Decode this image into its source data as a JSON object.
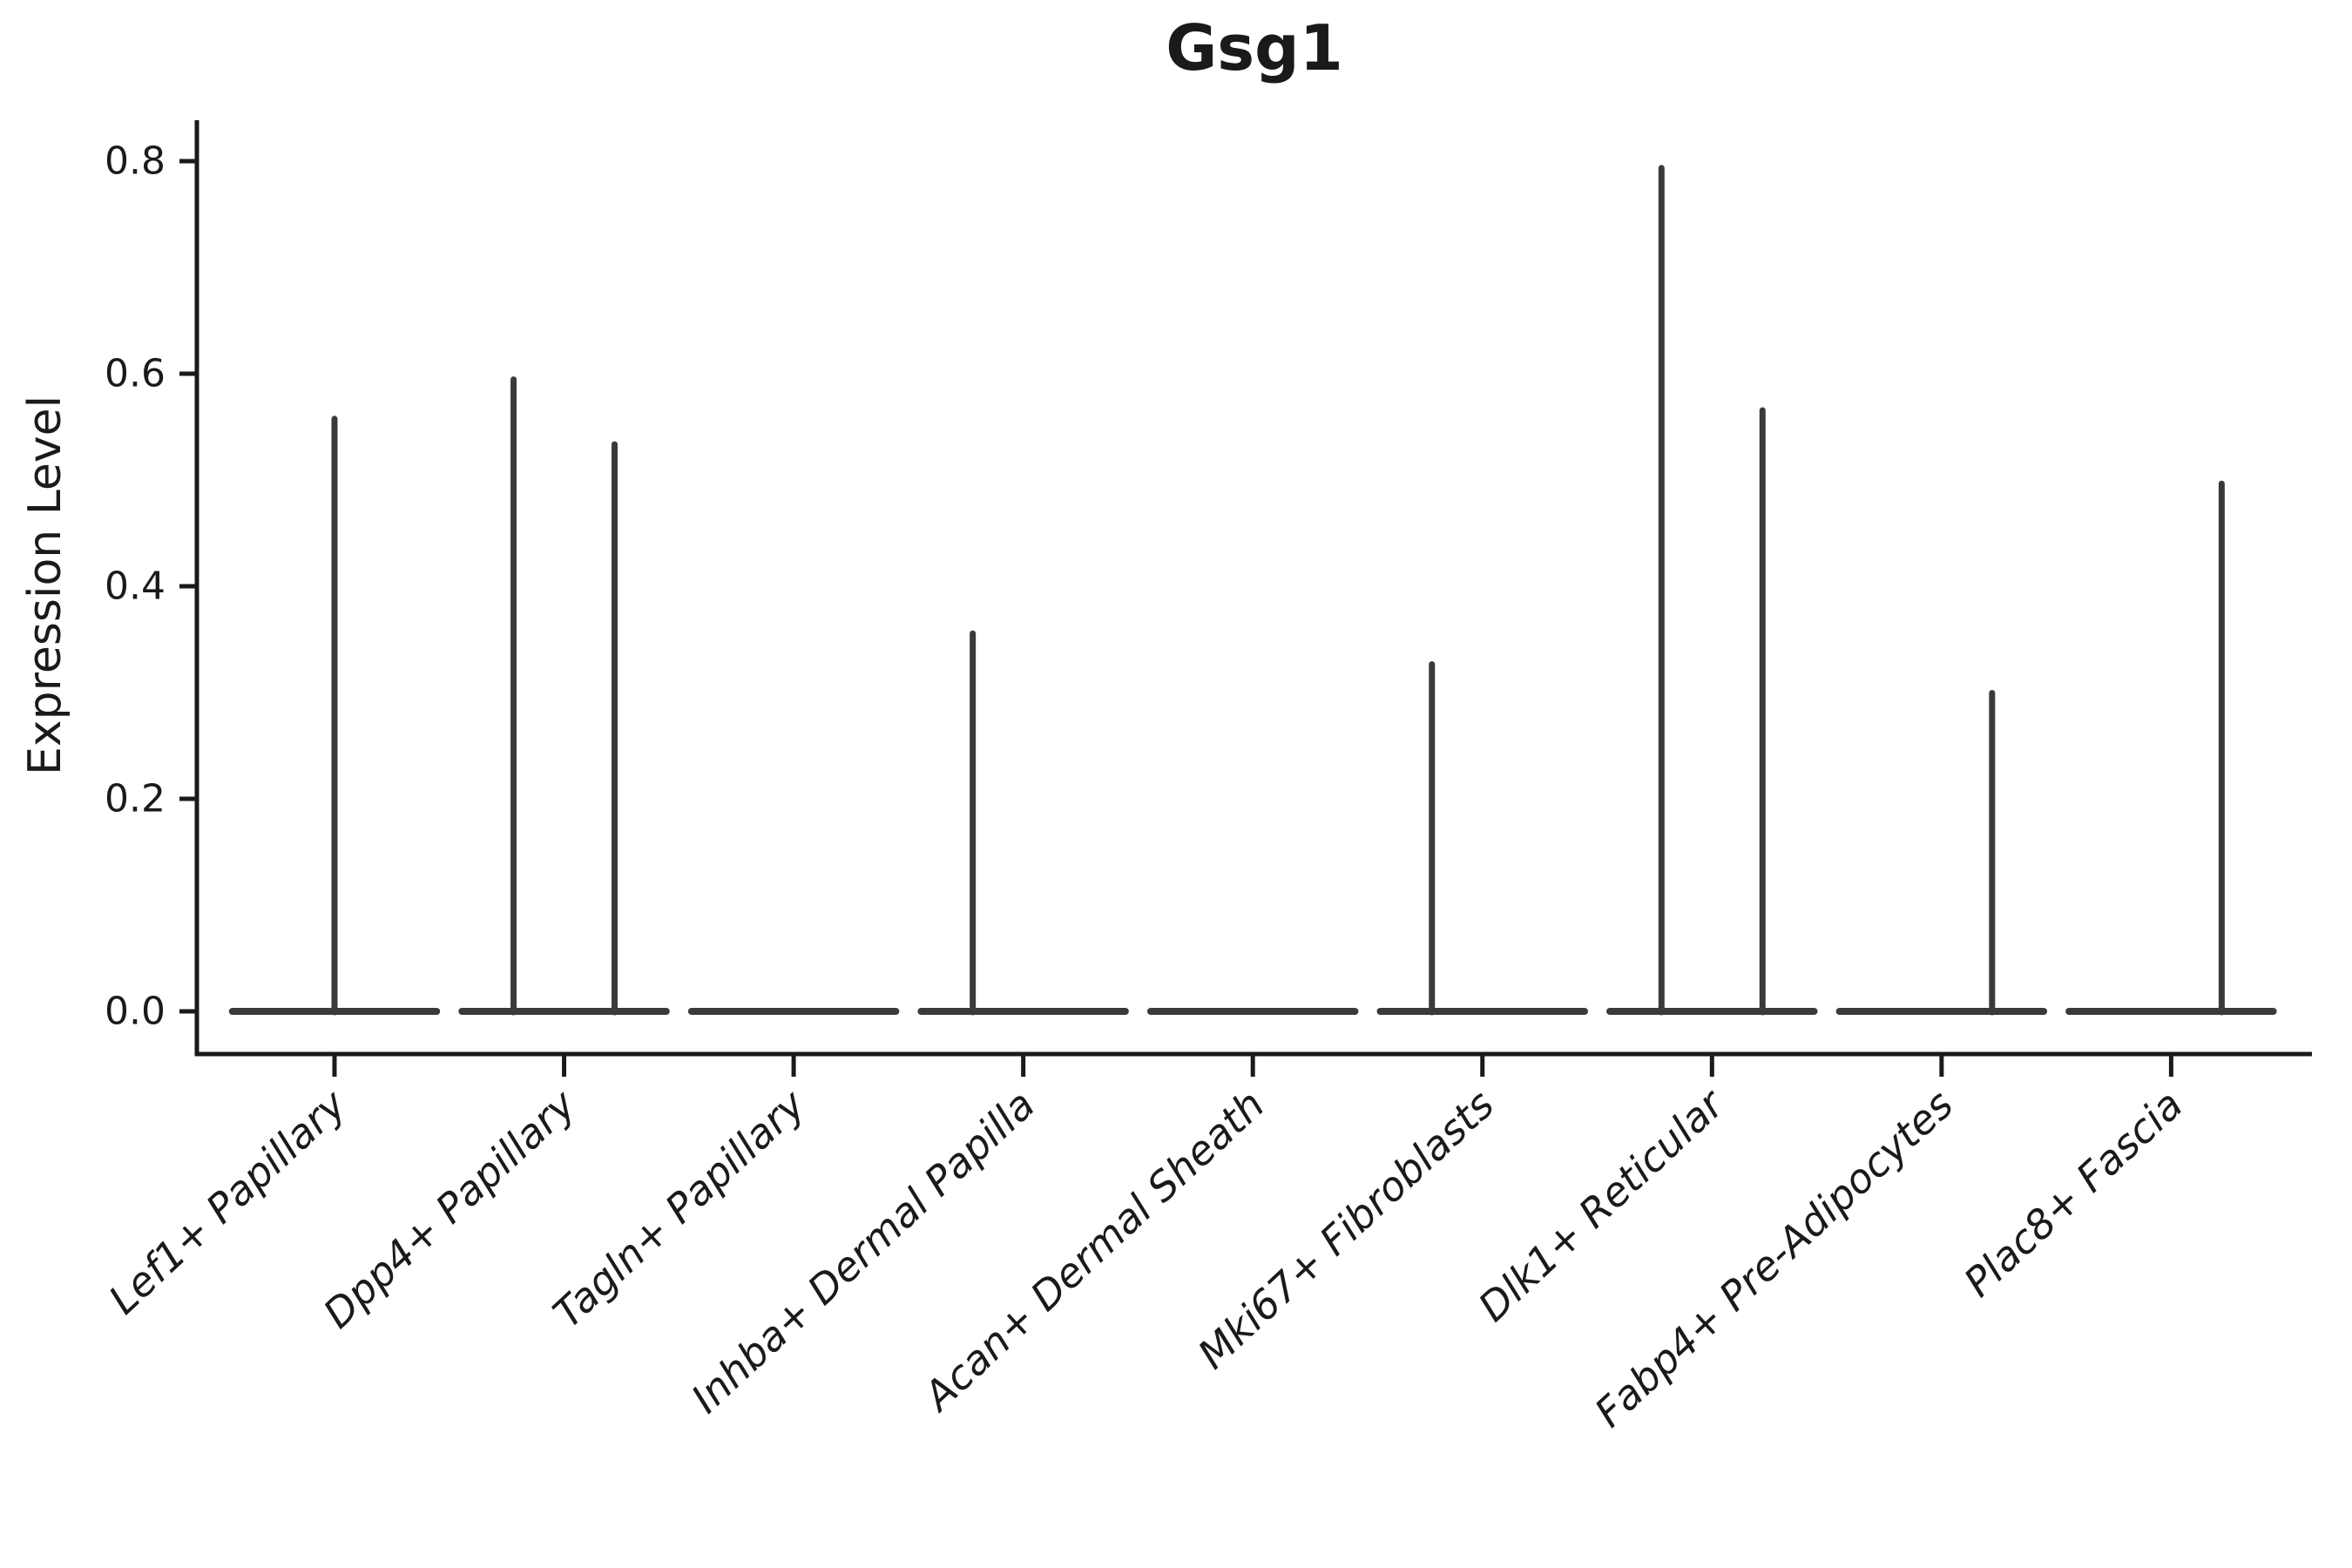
{
  "chart_data": {
    "type": "violin",
    "title": "Gsg1",
    "ylabel": "Expression Level",
    "xlabel": "",
    "ylim": [
      0,
      0.84
    ],
    "yticks": [
      {
        "label": "0.0",
        "value": 0.0
      },
      {
        "label": "0.2",
        "value": 0.2
      },
      {
        "label": "0.4",
        "value": 0.4
      },
      {
        "label": "0.6",
        "value": 0.6
      },
      {
        "label": "0.8",
        "value": 0.8
      }
    ],
    "grid": false,
    "legend": null,
    "x_label_rotation_deg": 43,
    "base_halfwidth": 0.46,
    "categories": [
      "Lef1+ Papillary",
      "Dpp4+ Papillary",
      "Tagln+ Papillary",
      "Inhba+ Dermal Papilla",
      "Acan+ Dermal Sheath",
      "Mki67+ Fibroblasts",
      "Dlk1+ Reticular",
      "Fabp4+ Pre-Adipocytes",
      "Plac8+ Fascia"
    ],
    "violins": [
      {
        "label": "Lef1+ Papillary",
        "base_at_zero": true,
        "spikes": [
          {
            "offset": 0.0,
            "max": 0.56
          }
        ]
      },
      {
        "label": "Dpp4+ Papillary",
        "base_at_zero": true,
        "spikes": [
          {
            "offset": -0.22,
            "max": 0.597
          },
          {
            "offset": 0.22,
            "max": 0.536
          }
        ]
      },
      {
        "label": "Tagln+ Papillary",
        "base_at_zero": true,
        "spikes": []
      },
      {
        "label": "Inhba+ Dermal Papilla",
        "base_at_zero": true,
        "spikes": [
          {
            "offset": -0.22,
            "max": 0.358
          }
        ]
      },
      {
        "label": "Acan+ Dermal Sheath",
        "base_at_zero": true,
        "spikes": []
      },
      {
        "label": "Mki67+ Fibroblasts",
        "base_at_zero": true,
        "spikes": [
          {
            "offset": -0.22,
            "max": 0.329
          }
        ]
      },
      {
        "label": "Dlk1+ Reticular",
        "base_at_zero": true,
        "spikes": [
          {
            "offset": -0.22,
            "max": 0.796
          },
          {
            "offset": 0.22,
            "max": 0.568
          }
        ]
      },
      {
        "label": "Fabp4+ Pre-Adipocytes",
        "base_at_zero": true,
        "spikes": [
          {
            "offset": 0.22,
            "max": 0.302
          }
        ]
      },
      {
        "label": "Plac8+ Fascia",
        "base_at_zero": true,
        "spikes": [
          {
            "offset": 0.22,
            "max": 0.499
          }
        ]
      }
    ],
    "colors": {
      "background": "#ffffff",
      "axis": "#1a1a1a",
      "text": "#1a1a1a",
      "violin_line": "#3a3a3a"
    }
  }
}
